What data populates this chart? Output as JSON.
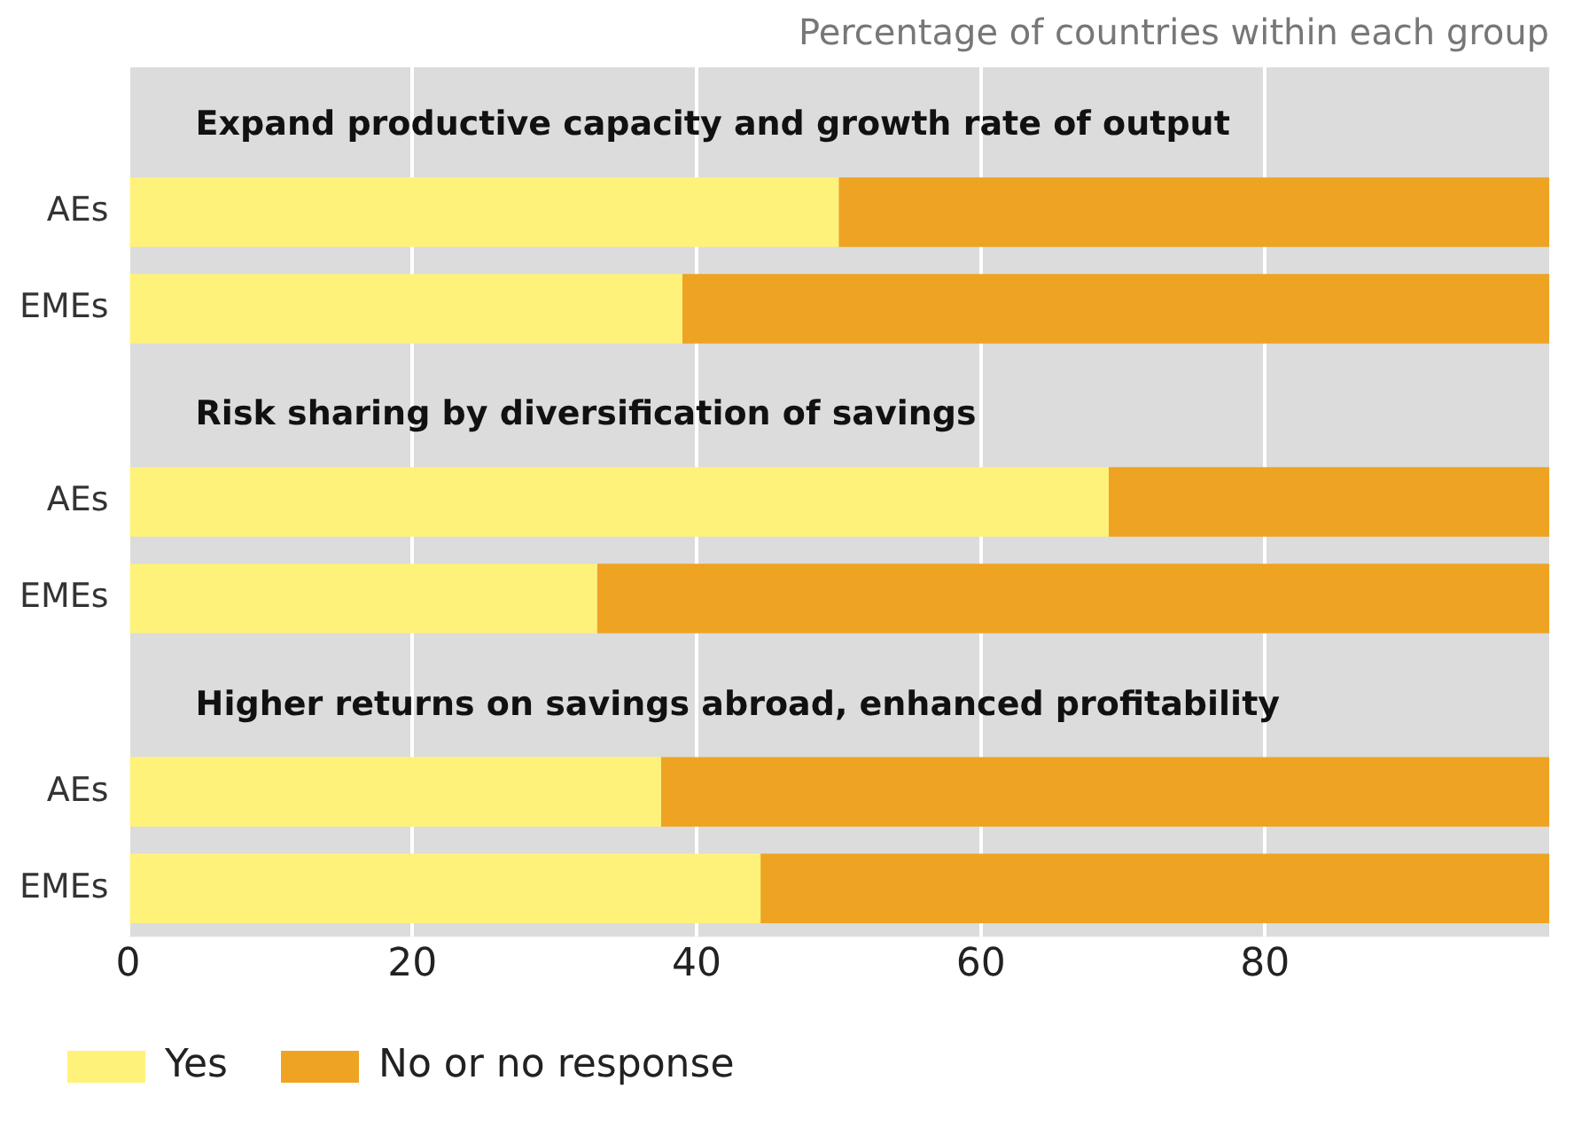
{
  "chart_data": {
    "type": "bar",
    "orientation": "horizontal",
    "stacked": true,
    "subtitle": "Percentage of countries within each group",
    "categories": [
      null,
      "AEs",
      "EMEs",
      null,
      "AEs",
      "EMEs",
      null,
      "AEs",
      "EMEs"
    ],
    "series": [
      {
        "name": "Yes",
        "color": "#fff27a",
        "values": [
          null,
          50,
          39,
          null,
          69,
          33,
          null,
          37.5,
          44.5
        ]
      },
      {
        "name": "No or no response",
        "color": "#eea422",
        "values": [
          null,
          50,
          61,
          null,
          31,
          67,
          null,
          62.5,
          55.5
        ]
      }
    ],
    "annotations": [
      "Expand productive capacity and growth rate of output",
      "Risk sharing by diversification of savings",
      "Higher returns on savings abroad, enhanced profitability"
    ],
    "xlim": [
      0,
      100
    ],
    "xticks": [
      0,
      20,
      40,
      60,
      80
    ],
    "grid": "x",
    "legend": "bottom"
  }
}
